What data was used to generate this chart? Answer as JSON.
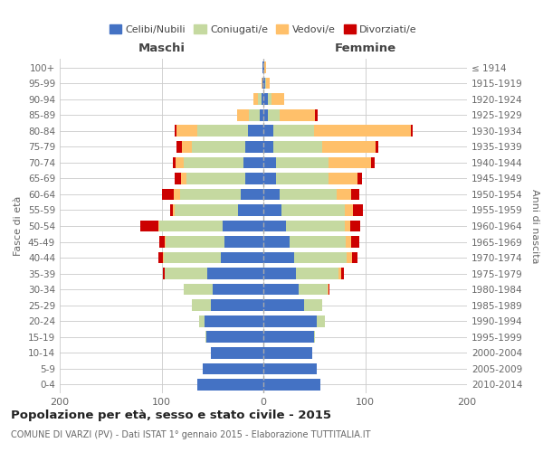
{
  "age_groups": [
    "0-4",
    "5-9",
    "10-14",
    "15-19",
    "20-24",
    "25-29",
    "30-34",
    "35-39",
    "40-44",
    "45-49",
    "50-54",
    "55-59",
    "60-64",
    "65-69",
    "70-74",
    "75-79",
    "80-84",
    "85-89",
    "90-94",
    "95-99",
    "100+"
  ],
  "birth_years": [
    "2010-2014",
    "2005-2009",
    "2000-2004",
    "1995-1999",
    "1990-1994",
    "1985-1989",
    "1980-1984",
    "1975-1979",
    "1970-1974",
    "1965-1969",
    "1960-1964",
    "1955-1959",
    "1950-1954",
    "1945-1949",
    "1940-1944",
    "1935-1939",
    "1930-1934",
    "1925-1929",
    "1920-1924",
    "1915-1919",
    "≤ 1914"
  ],
  "male_celibe": [
    65,
    60,
    52,
    56,
    58,
    52,
    50,
    55,
    42,
    38,
    40,
    25,
    22,
    18,
    20,
    18,
    15,
    4,
    2,
    1,
    1
  ],
  "male_coniugato": [
    0,
    0,
    0,
    1,
    5,
    18,
    28,
    42,
    56,
    58,
    62,
    62,
    60,
    58,
    58,
    52,
    50,
    10,
    3,
    0,
    0
  ],
  "male_vedovo": [
    0,
    0,
    0,
    0,
    0,
    0,
    0,
    0,
    1,
    1,
    1,
    2,
    6,
    5,
    8,
    10,
    20,
    12,
    5,
    1,
    0
  ],
  "male_divorziato": [
    0,
    0,
    0,
    0,
    0,
    0,
    0,
    2,
    4,
    5,
    18,
    3,
    12,
    6,
    3,
    5,
    2,
    0,
    0,
    0,
    0
  ],
  "female_celibe": [
    56,
    52,
    48,
    50,
    52,
    40,
    35,
    32,
    30,
    26,
    22,
    18,
    16,
    12,
    12,
    10,
    10,
    4,
    4,
    2,
    1
  ],
  "female_coniugata": [
    0,
    0,
    0,
    1,
    8,
    18,
    28,
    42,
    52,
    55,
    58,
    62,
    56,
    52,
    52,
    48,
    40,
    12,
    4,
    1,
    0
  ],
  "female_vedova": [
    0,
    0,
    0,
    0,
    0,
    0,
    1,
    2,
    5,
    5,
    5,
    8,
    14,
    28,
    42,
    52,
    95,
    35,
    12,
    3,
    2
  ],
  "female_divorziata": [
    0,
    0,
    0,
    0,
    0,
    0,
    1,
    3,
    5,
    8,
    10,
    10,
    8,
    5,
    3,
    3,
    2,
    2,
    0,
    0,
    0
  ],
  "color_celibe": "#4472c4",
  "color_coniugato": "#c5d9a0",
  "color_vedovo": "#ffc06a",
  "color_divorziato": "#cc0000",
  "title": "Popolazione per età, sesso e stato civile - 2015",
  "subtitle": "COMUNE DI VARZI (PV) - Dati ISTAT 1° gennaio 2015 - Elaborazione TUTTITALIA.IT",
  "ylabel_left": "Fasce di età",
  "ylabel_right": "Anni di nascita",
  "xlabel_left": "Maschi",
  "xlabel_right": "Femmine",
  "xlim": 200,
  "bg_color": "#ffffff",
  "grid_color": "#cccccc"
}
